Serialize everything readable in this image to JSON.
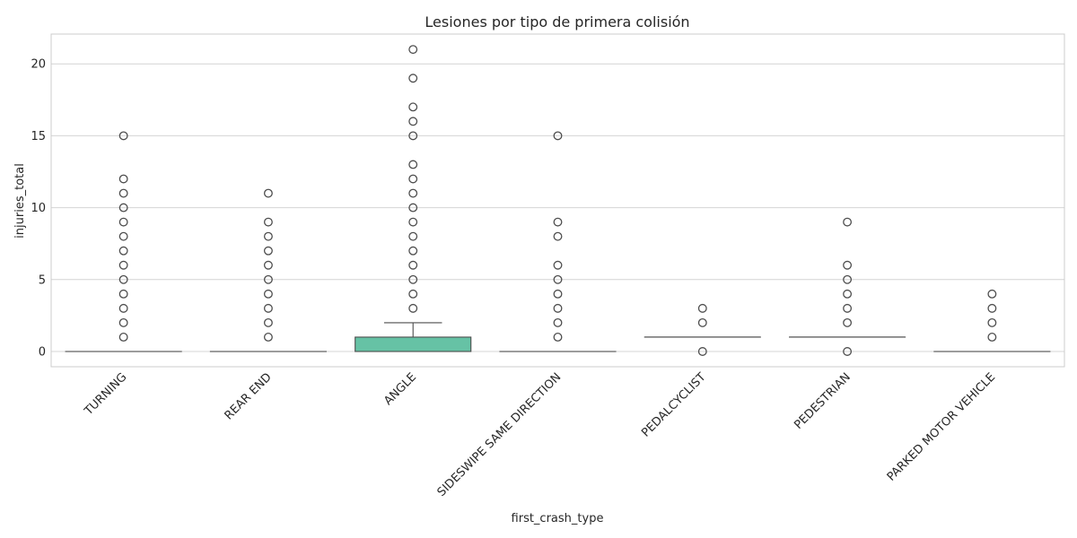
{
  "chart_data": {
    "type": "box",
    "title": "Lesiones por tipo de primera colisión",
    "xlabel": "first_crash_type",
    "ylabel": "injuries_total",
    "ylim": [
      -1.2,
      22.1
    ],
    "yticks": [
      0,
      5,
      10,
      15,
      20
    ],
    "grid": "y",
    "categories": [
      "TURNING",
      "REAR END",
      "ANGLE",
      "SIDESWIPE SAME DIRECTION",
      "PEDALCYCLIST",
      "PEDESTRIAN",
      "PARKED MOTOR VEHICLE"
    ],
    "boxes": [
      {
        "q1": 0,
        "median": 0,
        "q3": 0,
        "whisker_low": 0,
        "whisker_high": 0,
        "outliers": [
          1,
          2,
          3,
          4,
          5,
          6,
          7,
          8,
          9,
          10,
          11,
          12,
          15
        ]
      },
      {
        "q1": 0,
        "median": 0,
        "q3": 0,
        "whisker_low": 0,
        "whisker_high": 0,
        "outliers": [
          1,
          2,
          3,
          4,
          5,
          6,
          7,
          8,
          9,
          11
        ]
      },
      {
        "q1": 0,
        "median": 0,
        "q3": 1,
        "whisker_low": 0,
        "whisker_high": 2,
        "outliers": [
          3,
          4,
          5,
          6,
          7,
          8,
          9,
          10,
          11,
          12,
          13,
          15,
          16,
          17,
          19,
          21
        ]
      },
      {
        "q1": 0,
        "median": 0,
        "q3": 0,
        "whisker_low": 0,
        "whisker_high": 0,
        "outliers": [
          1,
          2,
          3,
          4,
          5,
          6,
          8,
          9,
          15
        ]
      },
      {
        "q1": 1,
        "median": 1,
        "q3": 1,
        "whisker_low": 1,
        "whisker_high": 1,
        "outliers": [
          0,
          2,
          3
        ]
      },
      {
        "q1": 1,
        "median": 1,
        "q3": 1,
        "whisker_low": 1,
        "whisker_high": 1,
        "outliers": [
          0,
          2,
          3,
          4,
          5,
          6,
          9
        ]
      },
      {
        "q1": 0,
        "median": 0,
        "q3": 0,
        "whisker_low": 0,
        "whisker_high": 0,
        "outliers": [
          1,
          2,
          3,
          4
        ]
      }
    ],
    "colors": {
      "box_fill": "#66c2a5",
      "line": "#4d4d4d",
      "grid": "#d4d4d4",
      "frame": "#cccccc",
      "text": "#262626"
    }
  }
}
